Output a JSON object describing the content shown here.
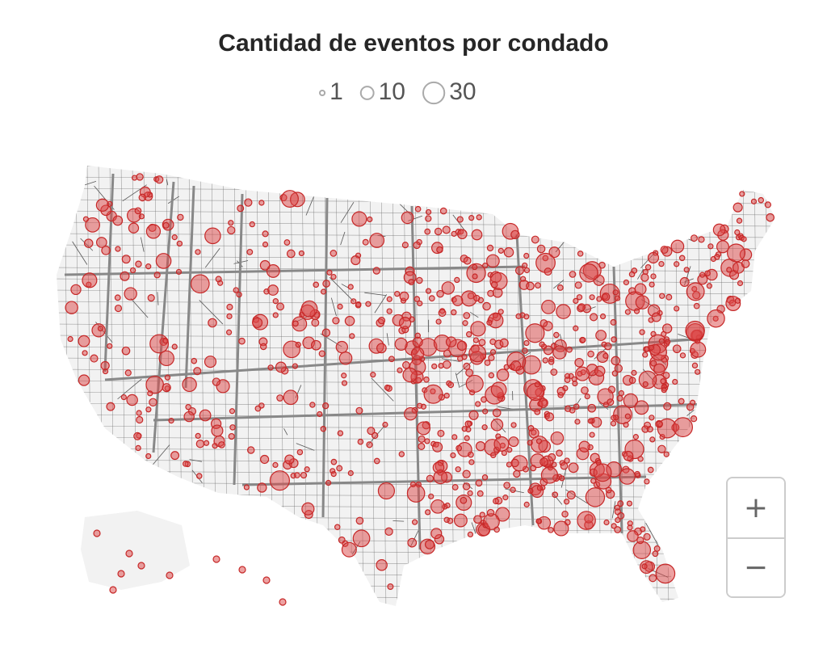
{
  "title": "Cantidad de eventos por condado",
  "legend": {
    "values": [
      1,
      10,
      30
    ]
  },
  "zoom": {
    "in": "+",
    "out": "−"
  }
}
